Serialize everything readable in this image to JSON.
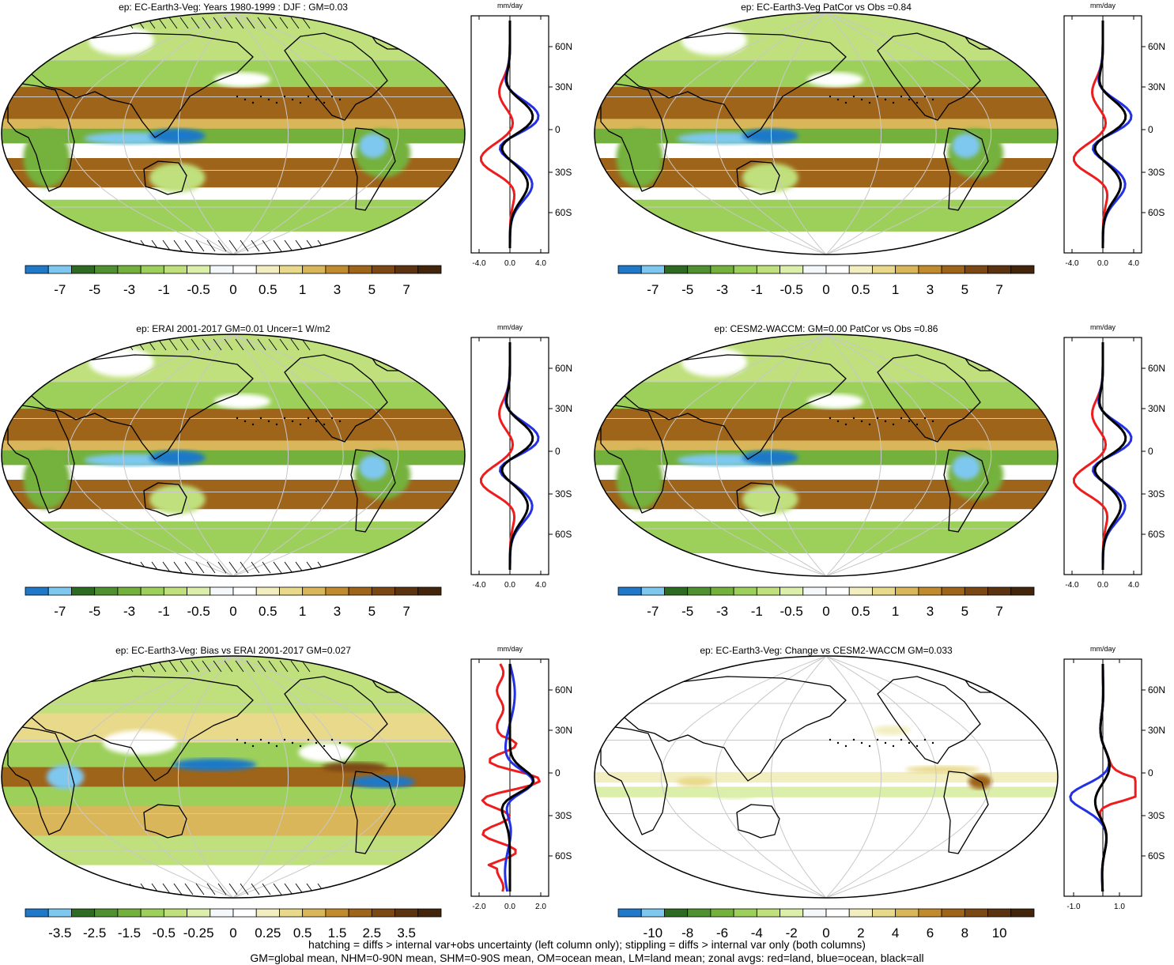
{
  "panels": [
    {
      "title": "ep: EC-Earth3-Veg: Years 1980-1999 : DJF : GM=0.03",
      "kind": "base",
      "hatched": true,
      "zonal_unit": "mm/day",
      "zonal_xticks": [
        "-4.0",
        "0.0",
        "4.0"
      ],
      "lat_labels": [
        "60N",
        "30N",
        "0",
        "30S",
        "60S"
      ],
      "colorbar_labels": [
        "-7",
        "-5",
        "-3",
        "-1",
        "-0.5",
        "0",
        "0.5",
        "1",
        "3",
        "5",
        "7"
      ]
    },
    {
      "title": "ep: EC-Earth3-Veg PatCor vs Obs =0.84",
      "kind": "base",
      "hatched": false,
      "zonal_unit": "mm/day",
      "zonal_xticks": [
        "-4.0",
        "0.0",
        "4.0"
      ],
      "lat_labels": [
        "60N",
        "30N",
        "0",
        "30S",
        "60S"
      ],
      "colorbar_labels": [
        "-7",
        "-5",
        "-3",
        "-1",
        "-0.5",
        "0",
        "0.5",
        "1",
        "3",
        "5",
        "7"
      ]
    },
    {
      "title": "ep: ERAI 2001-2017 GM=0.01 Uncer=1 W/m2",
      "kind": "base",
      "hatched": true,
      "zonal_unit": "mm/day",
      "zonal_xticks": [
        "-4.0",
        "0.0",
        "4.0"
      ],
      "lat_labels": [
        "60N",
        "30N",
        "0",
        "30S",
        "60S"
      ],
      "colorbar_labels": [
        "-7",
        "-5",
        "-3",
        "-1",
        "-0.5",
        "0",
        "0.5",
        "1",
        "3",
        "5",
        "7"
      ]
    },
    {
      "title": "ep: CESM2-WACCM: GM=0.00 PatCor vs Obs =0.86",
      "kind": "base",
      "hatched": false,
      "zonal_unit": "mm/day",
      "zonal_xticks": [
        "-4.0",
        "0.0",
        "4.0"
      ],
      "lat_labels": [
        "60N",
        "30N",
        "0",
        "30S",
        "60S"
      ],
      "colorbar_labels": [
        "-7",
        "-5",
        "-3",
        "-1",
        "-0.5",
        "0",
        "0.5",
        "1",
        "3",
        "5",
        "7"
      ]
    },
    {
      "title": "ep: EC-Earth3-Veg: Bias vs ERAI 2001-2017 GM=0.027",
      "kind": "bias",
      "hatched": true,
      "zonal_unit": "mm/day",
      "zonal_xticks": [
        "-2.0",
        "0.0",
        "2.0"
      ],
      "lat_labels": [
        "60N",
        "30N",
        "0",
        "30S",
        "60S"
      ],
      "colorbar_labels": [
        "-3.5",
        "-2.5",
        "-1.5",
        "-0.5",
        "-0.25",
        "0",
        "0.25",
        "0.5",
        "1.5",
        "2.5",
        "3.5"
      ]
    },
    {
      "title": "ep: EC-Earth3-Veg: Change vs CESM2-WACCM GM=0.033",
      "kind": "change",
      "hatched": false,
      "zonal_unit": "mm/day",
      "zonal_xticks": [
        "-1.0",
        "1.0"
      ],
      "lat_labels": [
        "60N",
        "30N",
        "0",
        "30S",
        "60S"
      ],
      "colorbar_labels": [
        "-10",
        "-8",
        "-6",
        "-4",
        "-2",
        "0",
        "2",
        "4",
        "6",
        "8",
        "10"
      ]
    }
  ],
  "palette": [
    "#1f78c8",
    "#7ec8f0",
    "#2e6b22",
    "#4f9130",
    "#74b13c",
    "#9cd05a",
    "#bfe07c",
    "#dcefaa",
    "#f4f8fb",
    "#ffffff",
    "#f2eec0",
    "#e9d98a",
    "#d9b65a",
    "#c08b2c",
    "#9e6419",
    "#7b4712",
    "#5c3310",
    "#42250b"
  ],
  "zonal_series_colors": {
    "land": "#ee1c1c",
    "ocean": "#2230e6",
    "all": "#000000"
  },
  "footer": {
    "line1": "hatching = diffs > internal var+obs uncertainty (left column only); stippling = diffs > internal var only (both columns)",
    "line2": "GM=global mean, NHM=0-90N mean, SHM=0-90S mean, OM=ocean mean, LM=land mean; zonal avgs: red=land, blue=ocean, black=all"
  }
}
